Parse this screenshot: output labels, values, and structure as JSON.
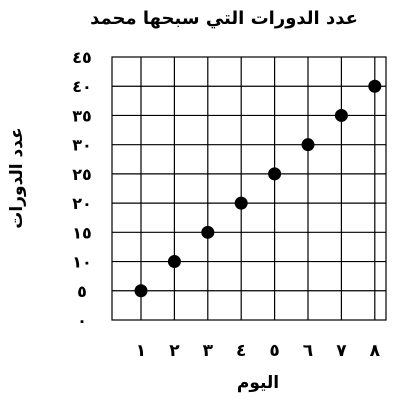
{
  "chart_data": {
    "type": "scatter",
    "title": "عدد الدورات التي سبحها محمد",
    "xlabel": "اليوم",
    "ylabel": "عدد الدورات",
    "x": [
      1,
      2,
      3,
      4,
      5,
      6,
      7,
      8
    ],
    "y": [
      5,
      10,
      15,
      20,
      25,
      30,
      35,
      40
    ],
    "xlim": [
      0,
      8
    ],
    "ylim": [
      0,
      45
    ],
    "x_ticks": [
      "١",
      "٢",
      "٣",
      "٤",
      "٥",
      "٦",
      "٧",
      "٨"
    ],
    "y_ticks": [
      "٠",
      "٥",
      "١٠",
      "١٥",
      "٢٠",
      "٢٥",
      "٣٠",
      "٣٥",
      "٤٠",
      "٤٥"
    ],
    "grid": true,
    "colors": {
      "points": "#000000",
      "grid": "#000000"
    }
  }
}
